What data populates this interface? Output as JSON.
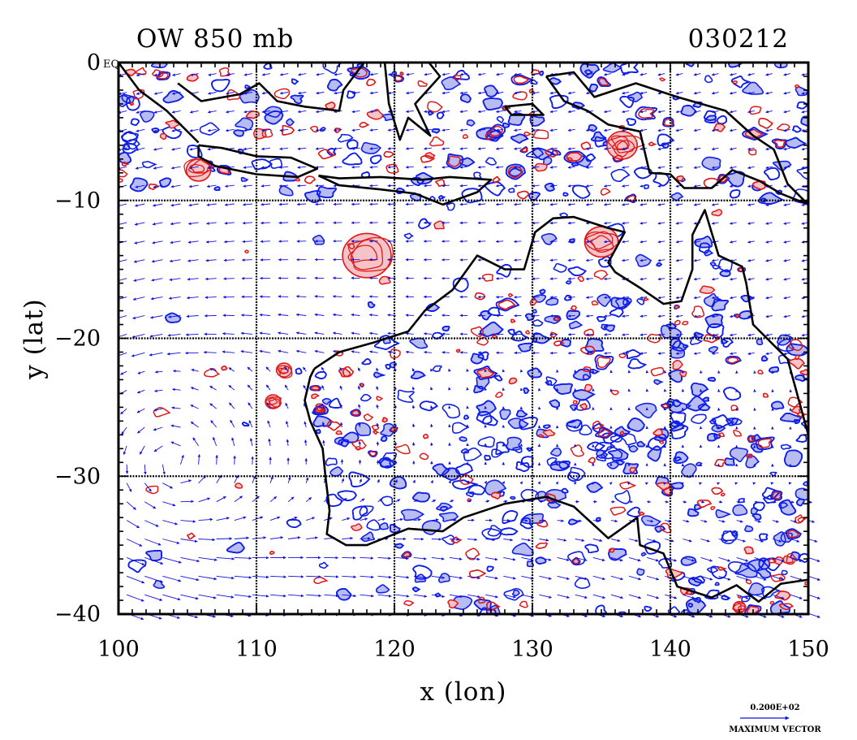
{
  "header": {
    "title": "OW 850 mb",
    "date": "030212"
  },
  "colors": {
    "vector": "#1010e0",
    "negative_fill": "#b8bcf0",
    "negative_line": "#1020e8",
    "positive_fill": "#f4c4c8",
    "positive_line": "#e01818",
    "coast": "#000000",
    "grid": "#000000"
  },
  "legend": {
    "scale_value": "0.200E+02",
    "scale_label": "MAXIMUM VECTOR"
  },
  "chart_data": {
    "type": "contour-vector-map",
    "xlabel": "x (lon)",
    "ylabel": "y (lat)",
    "xlim": [
      100,
      150
    ],
    "ylim": [
      -40,
      0
    ],
    "x_ticks": [
      100,
      110,
      120,
      130,
      140,
      150
    ],
    "y_ticks": [
      0,
      -10,
      -20,
      -30,
      -40
    ],
    "x_tick_labels": [
      "100",
      "110",
      "120",
      "130",
      "140",
      "150"
    ],
    "y_tick_labels": [
      "0",
      "−10",
      "−20",
      "−30",
      "−40"
    ],
    "corner_label": "EQ",
    "grid": true,
    "positive_centres": [
      {
        "lon": 118,
        "lat": -14,
        "r": 1.6
      },
      {
        "lon": 135,
        "lat": -13,
        "r": 1.1
      },
      {
        "lon": 136.5,
        "lat": -6,
        "r": 1.0
      },
      {
        "lon": 112,
        "lat": -22.3,
        "r": 0.5
      },
      {
        "lon": 111.2,
        "lat": -24.6,
        "r": 0.5
      },
      {
        "lon": 105.8,
        "lat": -7.8,
        "r": 0.8
      },
      {
        "lon": 145,
        "lat": -39.5,
        "r": 0.4
      }
    ],
    "coastlines": [
      [
        [
          114.2,
          -22.2
        ],
        [
          113.9,
          -22.8
        ],
        [
          113.5,
          -24.5
        ],
        [
          113.9,
          -26.0
        ],
        [
          114.8,
          -28.0
        ],
        [
          115.0,
          -30.0
        ],
        [
          115.3,
          -32.5
        ],
        [
          115.1,
          -34.2
        ],
        [
          116.5,
          -35.0
        ],
        [
          118.0,
          -35.0
        ],
        [
          119.5,
          -34.4
        ],
        [
          121.0,
          -33.8
        ],
        [
          123.5,
          -34.0
        ],
        [
          125.0,
          -33.0
        ],
        [
          128.0,
          -32.0
        ],
        [
          131.0,
          -31.5
        ],
        [
          133.0,
          -32.2
        ],
        [
          135.5,
          -34.5
        ],
        [
          137.6,
          -33.0
        ],
        [
          137.8,
          -35.0
        ],
        [
          139.5,
          -35.6
        ],
        [
          140.5,
          -38.0
        ],
        [
          143.0,
          -38.8
        ],
        [
          144.8,
          -37.9
        ],
        [
          146.4,
          -39.1
        ],
        [
          148.0,
          -37.8
        ],
        [
          150.0,
          -37.5
        ]
      ],
      [
        [
          150.0,
          -27.0
        ],
        [
          148.5,
          -21.5
        ],
        [
          146.0,
          -19.0
        ],
        [
          145.5,
          -16.0
        ],
        [
          145.2,
          -14.8
        ],
        [
          143.5,
          -14.0
        ],
        [
          142.5,
          -10.7
        ],
        [
          141.6,
          -12.5
        ],
        [
          141.6,
          -15.0
        ],
        [
          140.8,
          -17.3
        ],
        [
          139.5,
          -17.5
        ],
        [
          137.9,
          -16.4
        ],
        [
          136.0,
          -15.2
        ],
        [
          135.5,
          -14.5
        ],
        [
          136.7,
          -12.3
        ],
        [
          135.5,
          -12.0
        ],
        [
          133.0,
          -11.2
        ],
        [
          131.5,
          -11.3
        ],
        [
          130.2,
          -12.3
        ],
        [
          129.4,
          -15.0
        ],
        [
          128.0,
          -15.0
        ],
        [
          126.0,
          -14.0
        ],
        [
          124.2,
          -16.5
        ],
        [
          122.2,
          -18.0
        ],
        [
          121.0,
          -19.5
        ],
        [
          118.5,
          -20.3
        ],
        [
          116.0,
          -21.0
        ],
        [
          114.2,
          -22.2
        ]
      ],
      [
        [
          100.0,
          0.0
        ],
        [
          101.5,
          -2.0
        ],
        [
          103.5,
          -3.5
        ],
        [
          105.8,
          -5.8
        ]
      ],
      [
        [
          105.8,
          -6.0
        ],
        [
          107.5,
          -6.2
        ],
        [
          110.0,
          -6.8
        ],
        [
          112.5,
          -6.9
        ],
        [
          114.4,
          -7.7
        ],
        [
          113.0,
          -8.3
        ],
        [
          110.0,
          -8.1
        ],
        [
          107.0,
          -7.5
        ],
        [
          105.8,
          -6.8
        ],
        [
          105.8,
          -6.0
        ]
      ],
      [
        [
          114.5,
          -8.2
        ],
        [
          116.0,
          -8.4
        ],
        [
          119.0,
          -8.3
        ],
        [
          122.0,
          -8.5
        ],
        [
          124.0,
          -8.3
        ],
        [
          127.0,
          -8.5
        ],
        [
          126.0,
          -9.4
        ],
        [
          123.5,
          -10.3
        ],
        [
          121.5,
          -9.5
        ],
        [
          119.0,
          -9.2
        ],
        [
          116.0,
          -8.9
        ],
        [
          114.5,
          -8.2
        ]
      ],
      [
        [
          104.3,
          -1.5
        ],
        [
          106.0,
          -2.8
        ],
        [
          108.8,
          -2.3
        ],
        [
          110.2,
          -1.5
        ],
        [
          111.5,
          -2.8
        ],
        [
          113.5,
          -3.2
        ],
        [
          116.0,
          -3.5
        ],
        [
          116.3,
          -2.0
        ],
        [
          117.8,
          0.0
        ]
      ],
      [
        [
          119.3,
          0.0
        ],
        [
          119.6,
          -3.0
        ],
        [
          120.4,
          -5.6
        ],
        [
          121.0,
          -4.0
        ],
        [
          122.6,
          -5.3
        ],
        [
          121.5,
          -3.0
        ],
        [
          123.3,
          -1.0
        ],
        [
          122.5,
          0.0
        ]
      ],
      [
        [
          131.0,
          -1.0
        ],
        [
          133.0,
          -0.7
        ],
        [
          134.5,
          -2.5
        ],
        [
          137.5,
          -1.5
        ],
        [
          140.5,
          -2.5
        ],
        [
          144.0,
          -3.5
        ],
        [
          146.0,
          -5.3
        ],
        [
          147.5,
          -6.3
        ],
        [
          148.5,
          -8.8
        ],
        [
          150.0,
          -10.3
        ]
      ],
      [
        [
          131.0,
          -1.0
        ],
        [
          132.3,
          -2.8
        ],
        [
          134.0,
          -3.5
        ],
        [
          135.5,
          -4.5
        ],
        [
          137.8,
          -5.0
        ],
        [
          138.5,
          -8.0
        ],
        [
          140.0,
          -8.1
        ],
        [
          141.0,
          -9.1
        ],
        [
          143.0,
          -9.1
        ],
        [
          144.5,
          -7.8
        ],
        [
          146.5,
          -8.6
        ],
        [
          148.0,
          -9.5
        ],
        [
          150.0,
          -10.3
        ]
      ],
      [
        [
          128.0,
          -3.2
        ],
        [
          130.0,
          -3.0
        ],
        [
          130.8,
          -3.8
        ],
        [
          128.5,
          -3.8
        ],
        [
          128.0,
          -3.2
        ]
      ]
    ]
  }
}
